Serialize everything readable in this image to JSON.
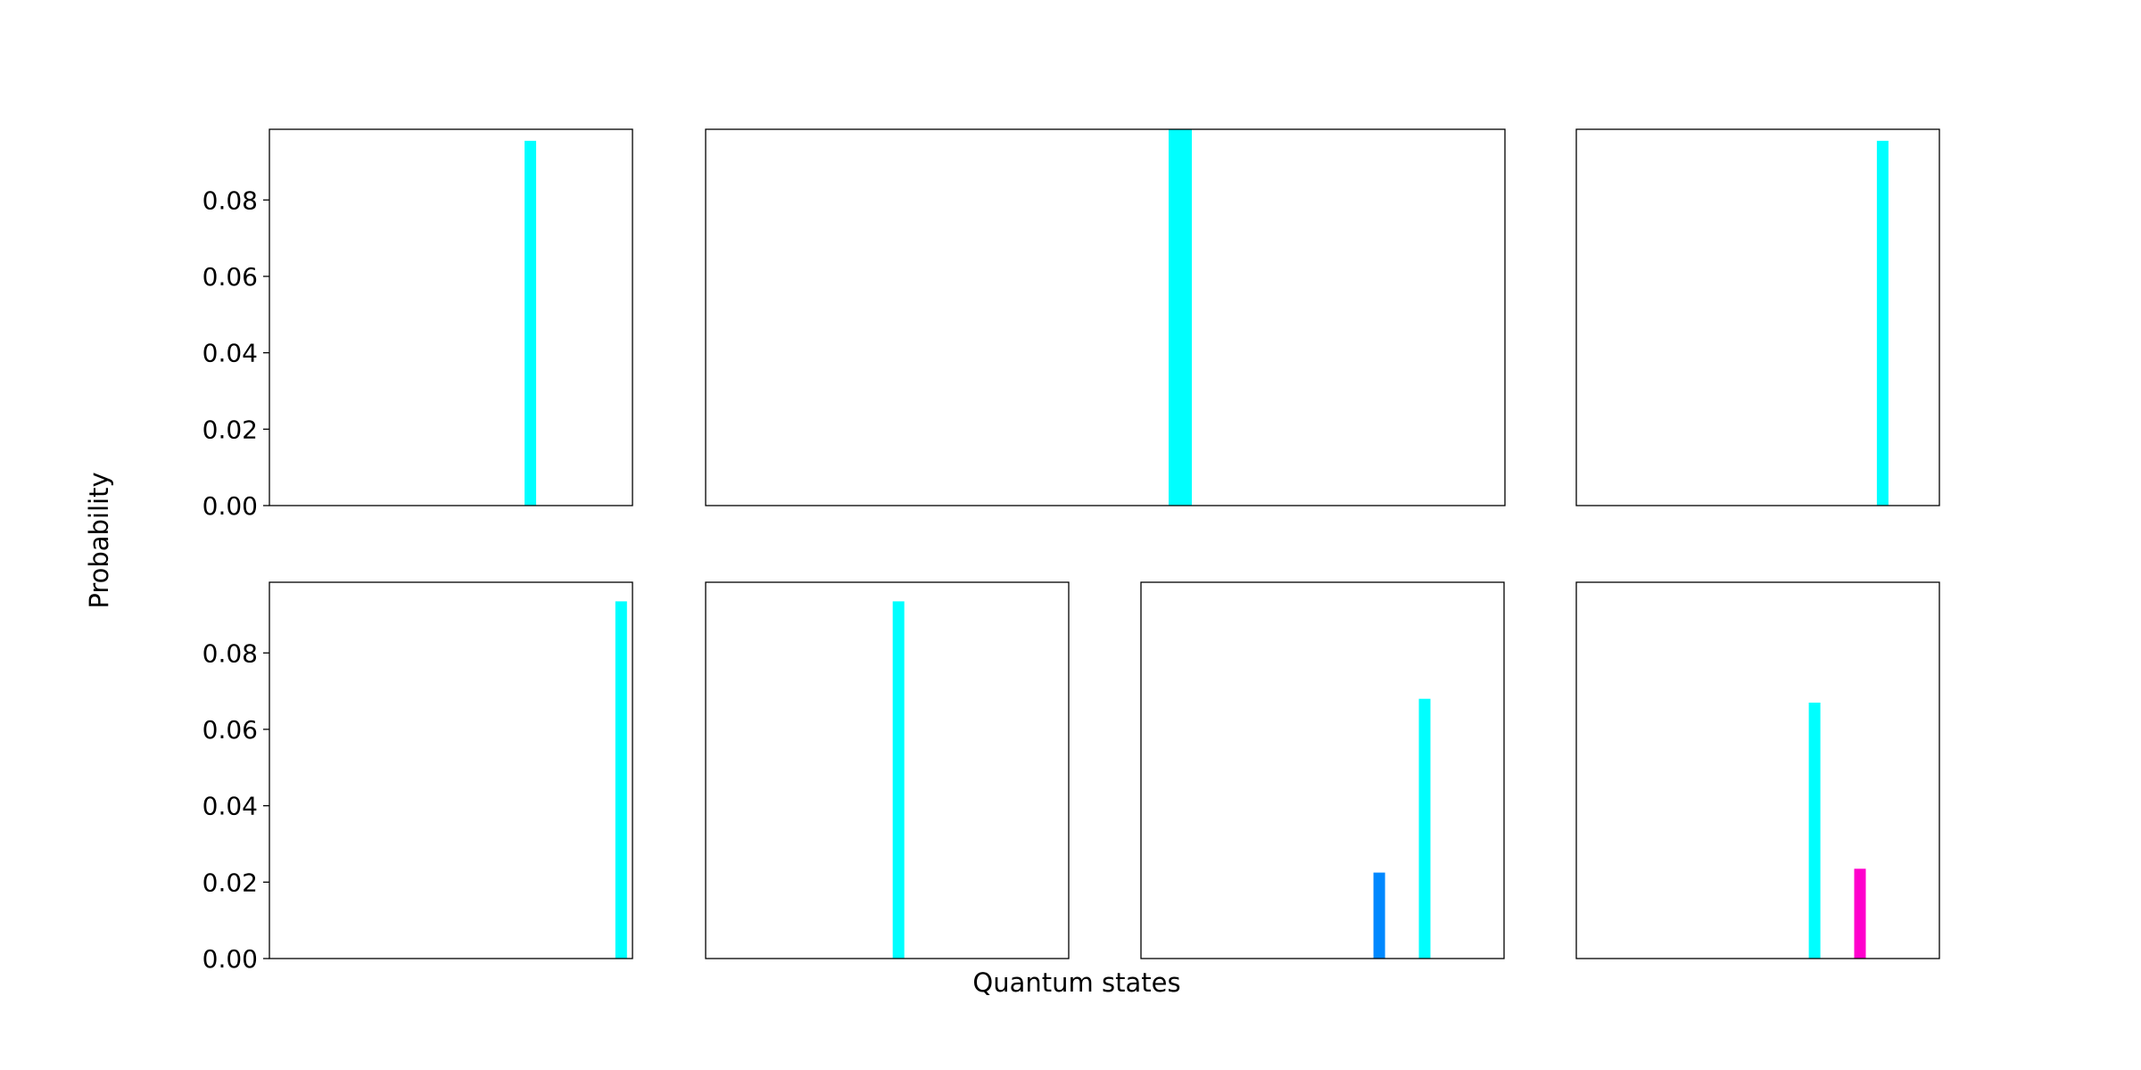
{
  "figure": {
    "xlabel": "Quantum states",
    "ylabel": "Probability"
  },
  "chart_data": [
    {
      "type": "bar",
      "row": 1,
      "col": 1,
      "colspan": 1,
      "ylim": [
        0,
        0.0985
      ],
      "yticks": [
        "0.00",
        "0.02",
        "0.04",
        "0.06",
        "0.08"
      ],
      "x": [
        0,
        1,
        2,
        3,
        4,
        5,
        6,
        7,
        8,
        9,
        10,
        11,
        12,
        13,
        14,
        15
      ],
      "bars": [
        {
          "x": 11,
          "y": 0.0955,
          "color": "#00ffff"
        }
      ]
    },
    {
      "type": "bar",
      "row": 1,
      "col": 2,
      "colspan": 2,
      "ylim": [
        0,
        0.0985
      ],
      "yticks": [],
      "x": [
        0,
        1,
        2,
        3,
        4,
        5,
        6,
        7,
        8,
        9,
        10,
        11,
        12,
        13,
        14,
        15
      ],
      "bars": [
        {
          "x": 9,
          "y": 0.0985,
          "color": "#00ffff"
        }
      ]
    },
    {
      "type": "bar",
      "row": 1,
      "col": 4,
      "colspan": 1,
      "ylim": [
        0,
        0.0985
      ],
      "yticks": [],
      "x": [
        0,
        1,
        2,
        3,
        4,
        5,
        6,
        7,
        8,
        9,
        10,
        11,
        12,
        13,
        14,
        15
      ],
      "bars": [
        {
          "x": 13,
          "y": 0.0955,
          "color": "#00ffff"
        }
      ]
    },
    {
      "type": "bar",
      "row": 2,
      "col": 1,
      "colspan": 1,
      "ylim": [
        0,
        0.0985
      ],
      "yticks": [
        "0.00",
        "0.02",
        "0.04",
        "0.06",
        "0.08"
      ],
      "x": [
        0,
        1,
        2,
        3,
        4,
        5,
        6,
        7,
        8,
        9,
        10,
        11,
        12,
        13,
        14,
        15
      ],
      "bars": [
        {
          "x": 15,
          "y": 0.0935,
          "color": "#00ffff"
        }
      ]
    },
    {
      "type": "bar",
      "row": 2,
      "col": 2,
      "colspan": 1,
      "ylim": [
        0,
        0.0985
      ],
      "yticks": [],
      "x": [
        0,
        1,
        2,
        3,
        4,
        5,
        6,
        7,
        8,
        9,
        10,
        11,
        12,
        13,
        14,
        15
      ],
      "bars": [
        {
          "x": 8,
          "y": 0.0935,
          "color": "#00ffff"
        }
      ]
    },
    {
      "type": "bar",
      "row": 2,
      "col": 3,
      "colspan": 1,
      "ylim": [
        0,
        0.0985
      ],
      "yticks": [],
      "x": [
        0,
        1,
        2,
        3,
        4,
        5,
        6,
        7,
        8,
        9,
        10,
        11,
        12,
        13,
        14,
        15
      ],
      "bars": [
        {
          "x": 10,
          "y": 0.0225,
          "color": "#0088ff"
        },
        {
          "x": 12,
          "y": 0.068,
          "color": "#00ffff"
        }
      ]
    },
    {
      "type": "bar",
      "row": 2,
      "col": 4,
      "colspan": 1,
      "ylim": [
        0,
        0.0985
      ],
      "yticks": [],
      "x": [
        0,
        1,
        2,
        3,
        4,
        5,
        6,
        7,
        8,
        9,
        10,
        11,
        12,
        13,
        14,
        15
      ],
      "bars": [
        {
          "x": 10,
          "y": 0.067,
          "color": "#00ffff"
        },
        {
          "x": 12,
          "y": 0.0235,
          "color": "#ff00cc"
        }
      ]
    }
  ]
}
